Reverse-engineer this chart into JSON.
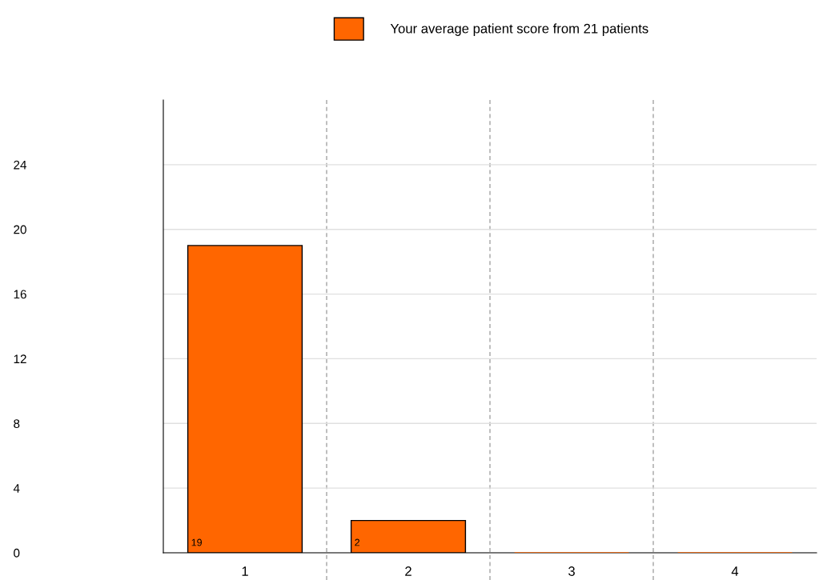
{
  "chart_data": {
    "type": "bar",
    "categories": [
      "1",
      "2",
      "3",
      "4"
    ],
    "series": [
      {
        "name": "Your average patient score from 21 patients",
        "color": "#ff6600",
        "values": [
          19,
          2,
          0,
          0
        ],
        "value_labels": [
          "19",
          "2",
          null,
          null
        ]
      }
    ],
    "ylim": [
      0,
      28
    ],
    "yticks": [
      0,
      4,
      8,
      12,
      16,
      20,
      24
    ],
    "grid": true,
    "legend": "top"
  }
}
